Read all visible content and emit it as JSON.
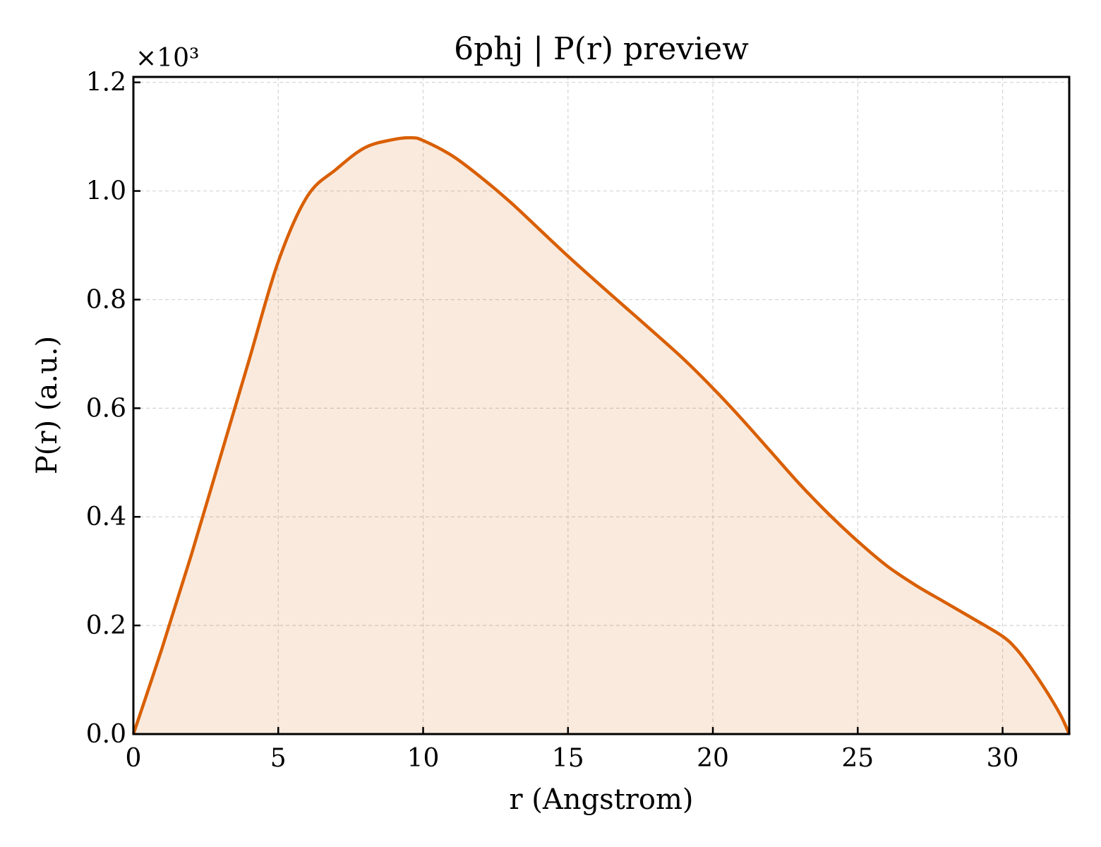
{
  "chart_data": {
    "type": "area",
    "title": "6phj | P(r) preview",
    "xlabel": "r (Angstrom)",
    "ylabel": "P(r) (a.u.)",
    "y_multiplier": "×10³",
    "xlim": [
      0,
      32.3
    ],
    "ylim": [
      0,
      1.21
    ],
    "xticks": [
      0,
      5,
      10,
      15,
      20,
      25,
      30
    ],
    "xtick_labels": [
      "0",
      "5",
      "10",
      "15",
      "20",
      "25",
      "30"
    ],
    "yticks": [
      0.0,
      0.2,
      0.4,
      0.6,
      0.8,
      1.0,
      1.2
    ],
    "ytick_labels": [
      "0.0",
      "0.2",
      "0.4",
      "0.6",
      "0.8",
      "1.0",
      "1.2"
    ],
    "grid": true,
    "colors": {
      "line": "#d95f02",
      "fill": "#d95f02"
    },
    "series": [
      {
        "x": [
          0,
          1,
          2,
          3,
          4,
          5,
          6,
          7,
          8,
          9,
          9.6,
          10,
          11,
          12,
          13,
          14,
          15,
          16,
          17,
          18,
          19,
          20,
          21,
          22,
          23,
          24,
          25,
          26,
          27,
          28,
          29,
          30,
          30.5,
          31,
          31.5,
          32,
          32.3
        ],
        "y": [
          0.0,
          0.16,
          0.33,
          0.51,
          0.69,
          0.87,
          0.99,
          1.04,
          1.08,
          1.095,
          1.098,
          1.093,
          1.065,
          1.025,
          0.98,
          0.93,
          0.88,
          0.832,
          0.785,
          0.738,
          0.69,
          0.637,
          0.58,
          0.52,
          0.46,
          0.405,
          0.355,
          0.31,
          0.274,
          0.243,
          0.212,
          0.18,
          0.155,
          0.12,
          0.08,
          0.035,
          0.0
        ]
      }
    ]
  }
}
